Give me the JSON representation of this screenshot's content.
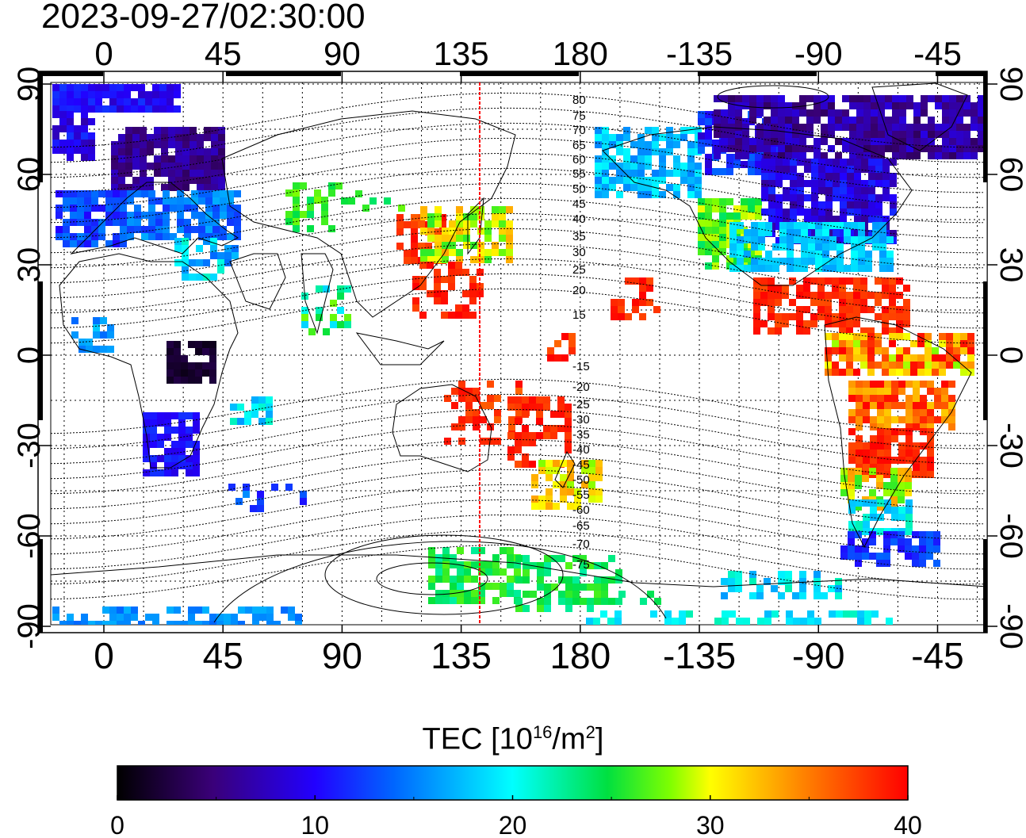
{
  "title": "2023-09-27/02:30:00",
  "map": {
    "lon_ticks": [
      "0",
      "45",
      "90",
      "135",
      "180",
      "-135",
      "-90",
      "-45"
    ],
    "lat_ticks_left": [
      "90",
      "60",
      "30",
      "0",
      "-30",
      "-60",
      "-90"
    ],
    "lat_ticks_right": [
      "90",
      "60",
      "30",
      "0",
      "-30",
      "-60",
      "-90"
    ],
    "magnetic_lat_labels_north": [
      "80",
      "75",
      "70",
      "65",
      "60",
      "55",
      "50",
      "45",
      "40",
      "35",
      "30",
      "25",
      "20",
      "15"
    ],
    "magnetic_lat_labels_south": [
      "-15",
      "-20",
      "-25",
      "-30",
      "-35",
      "-40",
      "-45",
      "-50",
      "-55",
      "-60",
      "-65",
      "-70",
      "-75"
    ],
    "terminator_color": "#ff0000",
    "grid": "dotted"
  },
  "colorbar": {
    "label_main": "TEC  [10",
    "label_exp": "16",
    "label_unit": "/m",
    "label_exp2": "2",
    "label_end": "]",
    "ticks": [
      "0",
      "10",
      "20",
      "30",
      "40"
    ],
    "range": [
      0,
      40
    ],
    "colors": [
      "#000000",
      "#3a0078",
      "#2200ff",
      "#0066ff",
      "#00ffff",
      "#00e040",
      "#80ff00",
      "#ffff00",
      "#ff8000",
      "#ff0000"
    ]
  }
}
